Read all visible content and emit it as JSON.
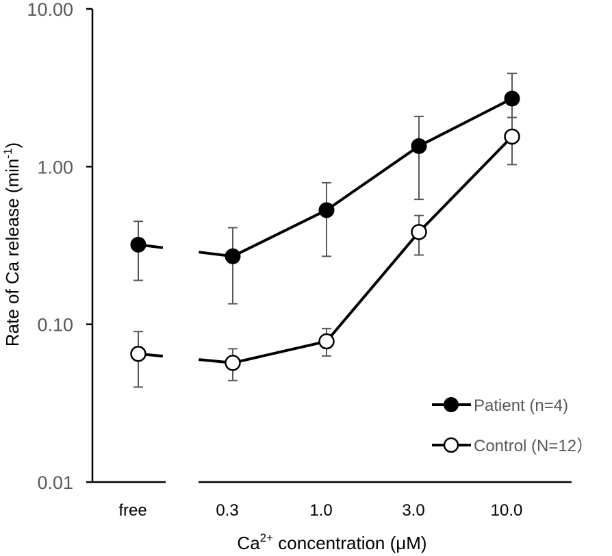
{
  "chart_data": {
    "type": "line",
    "yscale": "log",
    "categories": [
      "free",
      "0.3",
      "1.0",
      "3.0",
      "10.0"
    ],
    "yticks": [
      "10.00",
      "1.00",
      "0.10",
      "0.01"
    ],
    "ylim": [
      0.01,
      10
    ],
    "xlabel": {
      "base": "Ca",
      "sup": "2+",
      "rest": " concentration (μM)"
    },
    "ylabel": {
      "base": "Rate of  Ca release (min",
      "sup": "-1",
      "rest": ")"
    },
    "series": [
      {
        "name": "Patient (n=4)",
        "marker": "filled",
        "values": [
          0.32,
          0.27,
          0.53,
          1.35,
          2.7
        ],
        "err_low": [
          0.19,
          0.135,
          0.27,
          0.62,
          2.05
        ],
        "err_high": [
          0.45,
          0.41,
          0.79,
          2.08,
          3.9
        ]
      },
      {
        "name": "Control (N=12)",
        "marker": "open",
        "values": [
          0.065,
          0.057,
          0.078,
          0.385,
          1.55
        ],
        "err_low": [
          0.04,
          0.044,
          0.063,
          0.275,
          1.03
        ],
        "err_high": [
          0.09,
          0.07,
          0.094,
          0.49,
          2.05
        ]
      }
    ],
    "legend": {
      "placement": "bottom-right",
      "entries": [
        "Patient (n=4)",
        "Control (N=12）"
      ]
    },
    "colors": {
      "line": "#000000",
      "axis": "#000000",
      "errorbar": "#595959",
      "tick_label": "#595959"
    }
  }
}
